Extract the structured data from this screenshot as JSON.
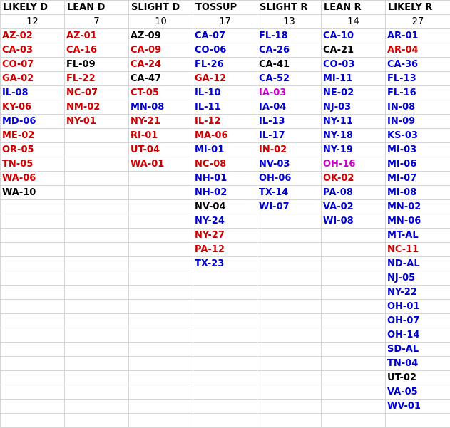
{
  "colors": {
    "D": "#0000cc",
    "R": "#cc0000",
    "O": "#000000",
    "P": "#cc00cc"
  },
  "row_count": 28,
  "columns": [
    {
      "header": "LIKELY D",
      "count": "12",
      "seats": [
        {
          "label": "AZ-02",
          "party": "R"
        },
        {
          "label": "CA-03",
          "party": "R"
        },
        {
          "label": "CO-07",
          "party": "R"
        },
        {
          "label": "GA-02",
          "party": "R"
        },
        {
          "label": "IL-08",
          "party": "D"
        },
        {
          "label": "KY-06",
          "party": "R"
        },
        {
          "label": "MD-06",
          "party": "D"
        },
        {
          "label": "ME-02",
          "party": "R"
        },
        {
          "label": "OR-05",
          "party": "R"
        },
        {
          "label": "TN-05",
          "party": "R"
        },
        {
          "label": "WA-06",
          "party": "R"
        },
        {
          "label": "WA-10",
          "party": "O"
        }
      ]
    },
    {
      "header": "LEAN D",
      "count": "7",
      "seats": [
        {
          "label": "AZ-01",
          "party": "R"
        },
        {
          "label": "CA-16",
          "party": "R"
        },
        {
          "label": "FL-09",
          "party": "O"
        },
        {
          "label": "FL-22",
          "party": "R"
        },
        {
          "label": "NC-07",
          "party": "R"
        },
        {
          "label": "NM-02",
          "party": "R"
        },
        {
          "label": "NY-01",
          "party": "R"
        }
      ]
    },
    {
      "header": "SLIGHT D",
      "count": "10",
      "seats": [
        {
          "label": "AZ-09",
          "party": "O"
        },
        {
          "label": "CA-09",
          "party": "R"
        },
        {
          "label": "CA-24",
          "party": "R"
        },
        {
          "label": "CA-47",
          "party": "O"
        },
        {
          "label": "CT-05",
          "party": "R"
        },
        {
          "label": "MN-08",
          "party": "D"
        },
        {
          "label": "NY-21",
          "party": "R"
        },
        {
          "label": "RI-01",
          "party": "R"
        },
        {
          "label": "UT-04",
          "party": "R"
        },
        {
          "label": "WA-01",
          "party": "R"
        }
      ]
    },
    {
      "header": "TOSSUP",
      "count": "17",
      "seats": [
        {
          "label": "CA-07",
          "party": "D"
        },
        {
          "label": "CO-06",
          "party": "D"
        },
        {
          "label": "FL-26",
          "party": "D"
        },
        {
          "label": "GA-12",
          "party": "R"
        },
        {
          "label": "IL-10",
          "party": "D"
        },
        {
          "label": "IL-11",
          "party": "D"
        },
        {
          "label": "IL-12",
          "party": "R"
        },
        {
          "label": "MA-06",
          "party": "R"
        },
        {
          "label": "MI-01",
          "party": "D"
        },
        {
          "label": "NC-08",
          "party": "R"
        },
        {
          "label": "NH-01",
          "party": "D"
        },
        {
          "label": "NH-02",
          "party": "D"
        },
        {
          "label": "NV-04",
          "party": "O"
        },
        {
          "label": "NY-24",
          "party": "D"
        },
        {
          "label": "NY-27",
          "party": "R"
        },
        {
          "label": "PA-12",
          "party": "R"
        },
        {
          "label": "TX-23",
          "party": "D"
        }
      ]
    },
    {
      "header": "SLIGHT R",
      "count": "13",
      "seats": [
        {
          "label": "FL-18",
          "party": "D"
        },
        {
          "label": "CA-26",
          "party": "D"
        },
        {
          "label": "CA-41",
          "party": "O"
        },
        {
          "label": "CA-52",
          "party": "D"
        },
        {
          "label": "IA-03",
          "party": "P"
        },
        {
          "label": "IA-04",
          "party": "D"
        },
        {
          "label": "IL-13",
          "party": "D"
        },
        {
          "label": "IL-17",
          "party": "D"
        },
        {
          "label": "IN-02",
          "party": "R"
        },
        {
          "label": "NV-03",
          "party": "D"
        },
        {
          "label": "OH-06",
          "party": "D"
        },
        {
          "label": "TX-14",
          "party": "D"
        },
        {
          "label": "WI-07",
          "party": "D"
        }
      ]
    },
    {
      "header": "LEAN R",
      "count": "14",
      "seats": [
        {
          "label": "CA-10",
          "party": "D"
        },
        {
          "label": "CA-21",
          "party": "O"
        },
        {
          "label": "CO-03",
          "party": "D"
        },
        {
          "label": "MI-11",
          "party": "D"
        },
        {
          "label": "NE-02",
          "party": "D"
        },
        {
          "label": "NJ-03",
          "party": "D"
        },
        {
          "label": "NY-11",
          "party": "D"
        },
        {
          "label": "NY-18",
          "party": "D"
        },
        {
          "label": "NY-19",
          "party": "D"
        },
        {
          "label": "OH-16",
          "party": "P"
        },
        {
          "label": "OK-02",
          "party": "R"
        },
        {
          "label": "PA-08",
          "party": "D"
        },
        {
          "label": "VA-02",
          "party": "D"
        },
        {
          "label": "WI-08",
          "party": "D"
        }
      ]
    },
    {
      "header": "LIKELY R",
      "count": "27",
      "seats": [
        {
          "label": "AR-01",
          "party": "D"
        },
        {
          "label": "AR-04",
          "party": "R"
        },
        {
          "label": "CA-36",
          "party": "D"
        },
        {
          "label": "FL-13",
          "party": "D"
        },
        {
          "label": "FL-16",
          "party": "D"
        },
        {
          "label": "IN-08",
          "party": "D"
        },
        {
          "label": "IN-09",
          "party": "D"
        },
        {
          "label": "KS-03",
          "party": "D"
        },
        {
          "label": "MI-03",
          "party": "D"
        },
        {
          "label": "MI-06",
          "party": "D"
        },
        {
          "label": "MI-07",
          "party": "D"
        },
        {
          "label": "MI-08",
          "party": "D"
        },
        {
          "label": "MN-02",
          "party": "D"
        },
        {
          "label": "MN-06",
          "party": "D"
        },
        {
          "label": "MT-AL",
          "party": "D"
        },
        {
          "label": "NC-11",
          "party": "R"
        },
        {
          "label": "ND-AL",
          "party": "D"
        },
        {
          "label": "NJ-05",
          "party": "D"
        },
        {
          "label": "NY-22",
          "party": "D"
        },
        {
          "label": "OH-01",
          "party": "D"
        },
        {
          "label": "OH-07",
          "party": "D"
        },
        {
          "label": "OH-14",
          "party": "D"
        },
        {
          "label": "SD-AL",
          "party": "D"
        },
        {
          "label": "TN-04",
          "party": "D"
        },
        {
          "label": "UT-02",
          "party": "O"
        },
        {
          "label": "VA-05",
          "party": "D"
        },
        {
          "label": "WV-01",
          "party": "D"
        }
      ]
    }
  ]
}
